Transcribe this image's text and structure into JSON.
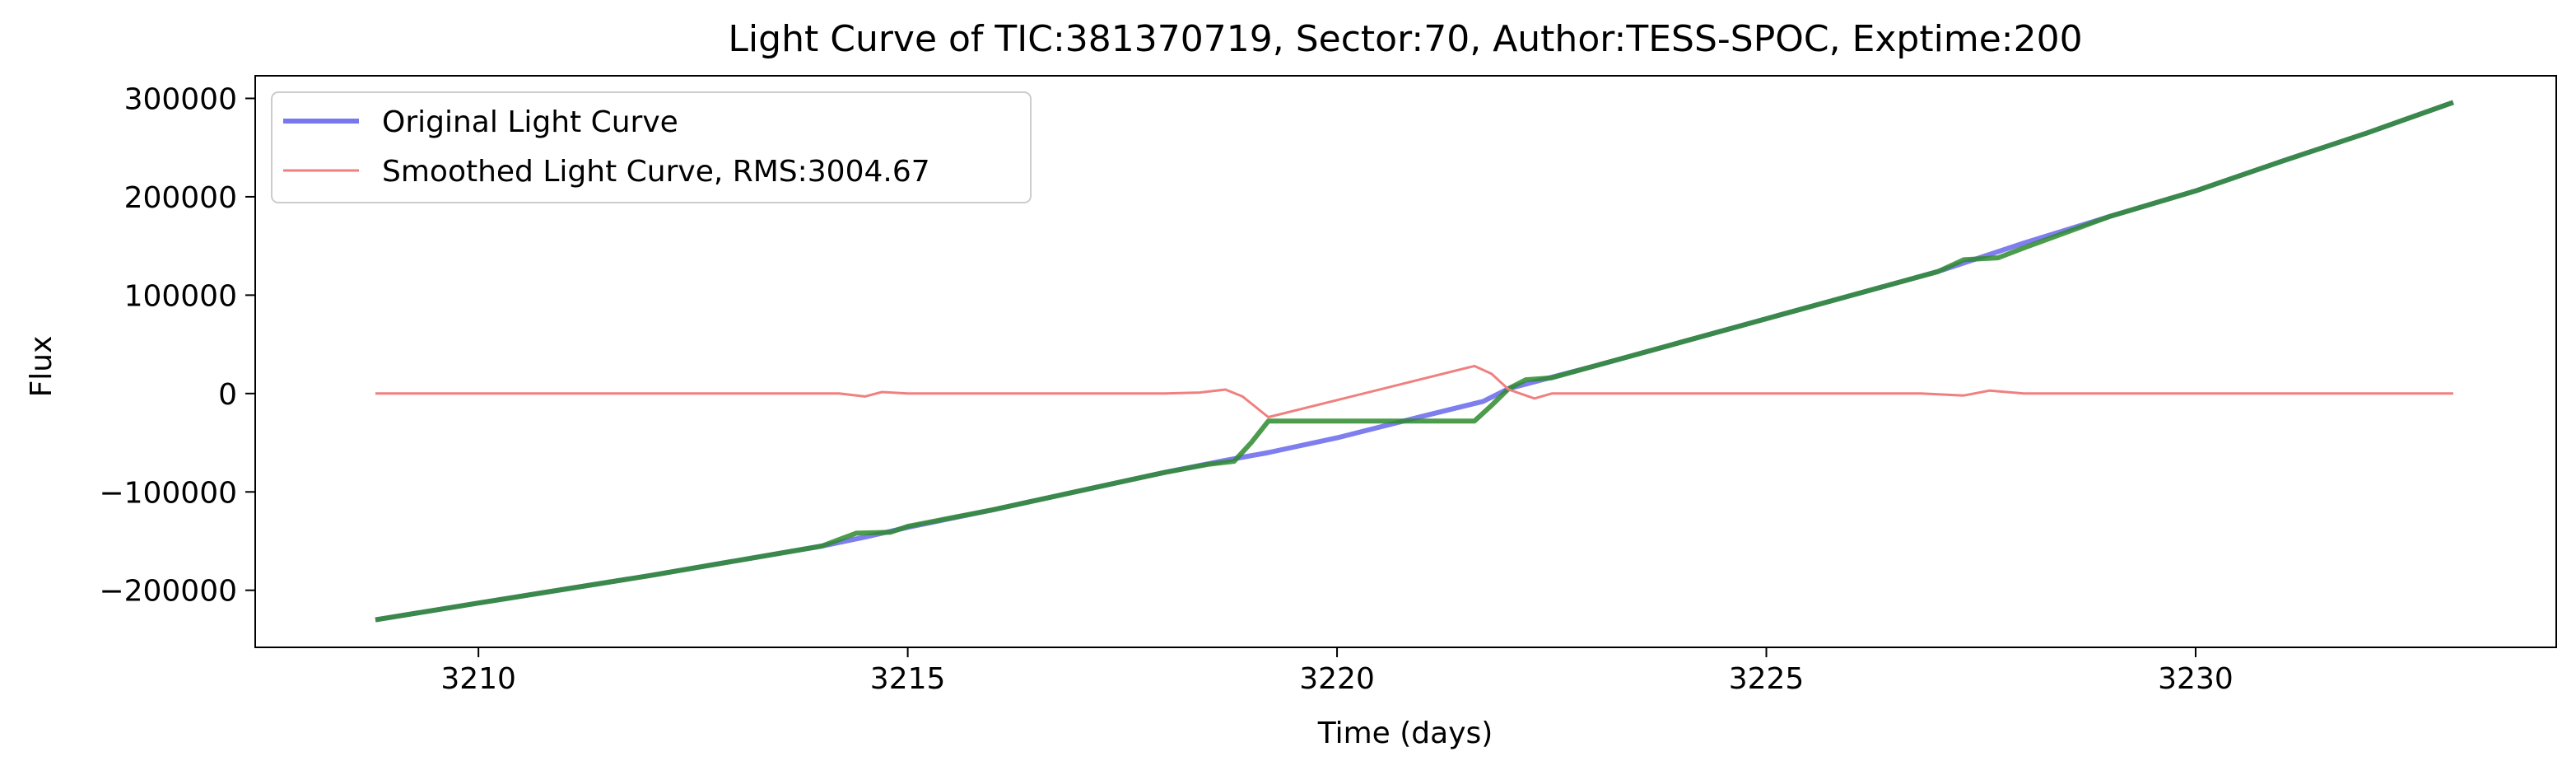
{
  "chart_data": {
    "type": "line",
    "title": "Light Curve of TIC:381370719, Sector:70, Author:TESS-SPOC, Exptime:200",
    "xlabel": "Time (days)",
    "ylabel": "Flux",
    "xlim": [
      3207.4,
      3234.2
    ],
    "ylim": [
      -258000,
      323000
    ],
    "xticks": [
      3210,
      3215,
      3220,
      3225,
      3230
    ],
    "xtick_labels": [
      "3210",
      "3215",
      "3220",
      "3225",
      "3230"
    ],
    "yticks": [
      -200000,
      -100000,
      0,
      100000,
      200000,
      300000
    ],
    "ytick_labels": [
      "−200000",
      "−100000",
      "0",
      "100000",
      "200000",
      "300000"
    ],
    "grid": false,
    "legend_position": "top-left",
    "legend": [
      {
        "label": "Original Light Curve",
        "color": "#7777ee"
      },
      {
        "label": "Smoothed Light Curve, RMS:3004.67",
        "color": "#f08080"
      }
    ],
    "series": [
      {
        "name": "Original Light Curve",
        "color": "#7777ee",
        "x": [
          3208.8,
          3210,
          3211,
          3212,
          3213,
          3214,
          3214.5,
          3215,
          3216,
          3217,
          3218,
          3218.7,
          3219.2,
          3220,
          3221,
          3221.7,
          3222,
          3223,
          3224,
          3225,
          3226,
          3227,
          3228,
          3229,
          3230,
          3231,
          3232,
          3233
        ],
        "y": [
          -230000,
          -213000,
          -199000,
          -185000,
          -170000,
          -155000,
          -146000,
          -136000,
          -118000,
          -99000,
          -80000,
          -68000,
          -60000,
          -45000,
          -23000,
          -8000,
          5000,
          28000,
          52000,
          76000,
          100000,
          124000,
          153000,
          180000,
          206000,
          236000,
          265000,
          296000
        ]
      },
      {
        "name": "",
        "color": "#2e8b2e",
        "x": [
          3208.8,
          3210,
          3211,
          3212,
          3213,
          3214,
          3214.4,
          3214.8,
          3215,
          3216,
          3217,
          3218,
          3218.5,
          3218.8,
          3219,
          3219.2,
          3220,
          3221,
          3221.6,
          3221.8,
          3222,
          3222.2,
          3222.5,
          3223,
          3224,
          3225,
          3226,
          3227,
          3227.3,
          3227.7,
          3228,
          3229,
          3230,
          3231,
          3232,
          3233
        ],
        "y": [
          -230000,
          -213000,
          -199000,
          -185000,
          -170000,
          -155000,
          -142000,
          -141000,
          -135000,
          -118000,
          -99000,
          -80000,
          -72000,
          -69000,
          -50000,
          -28000,
          -28000,
          -28000,
          -28000,
          -12000,
          5000,
          14000,
          16000,
          28000,
          52000,
          76000,
          100000,
          124000,
          136000,
          138000,
          148000,
          180000,
          206000,
          236000,
          265000,
          296000
        ]
      },
      {
        "name": "Smoothed Light Curve, RMS:3004.67",
        "color": "#f08080",
        "x": [
          3208.8,
          3210,
          3212,
          3214,
          3214.2,
          3214.5,
          3214.7,
          3215,
          3216,
          3218,
          3218.4,
          3218.7,
          3218.9,
          3219.2,
          3221.6,
          3221.8,
          3222,
          3222.3,
          3222.5,
          3223,
          3225,
          3226.8,
          3227.3,
          3227.6,
          3228,
          3228.4,
          3230,
          3233
        ],
        "y": [
          0,
          0,
          0,
          0,
          0,
          -3000,
          1500,
          0,
          0,
          0,
          1000,
          4000,
          -3000,
          -24000,
          28000,
          20000,
          4000,
          -5000,
          0,
          0,
          0,
          0,
          -2000,
          3000,
          0,
          0,
          0,
          0
        ]
      }
    ]
  }
}
